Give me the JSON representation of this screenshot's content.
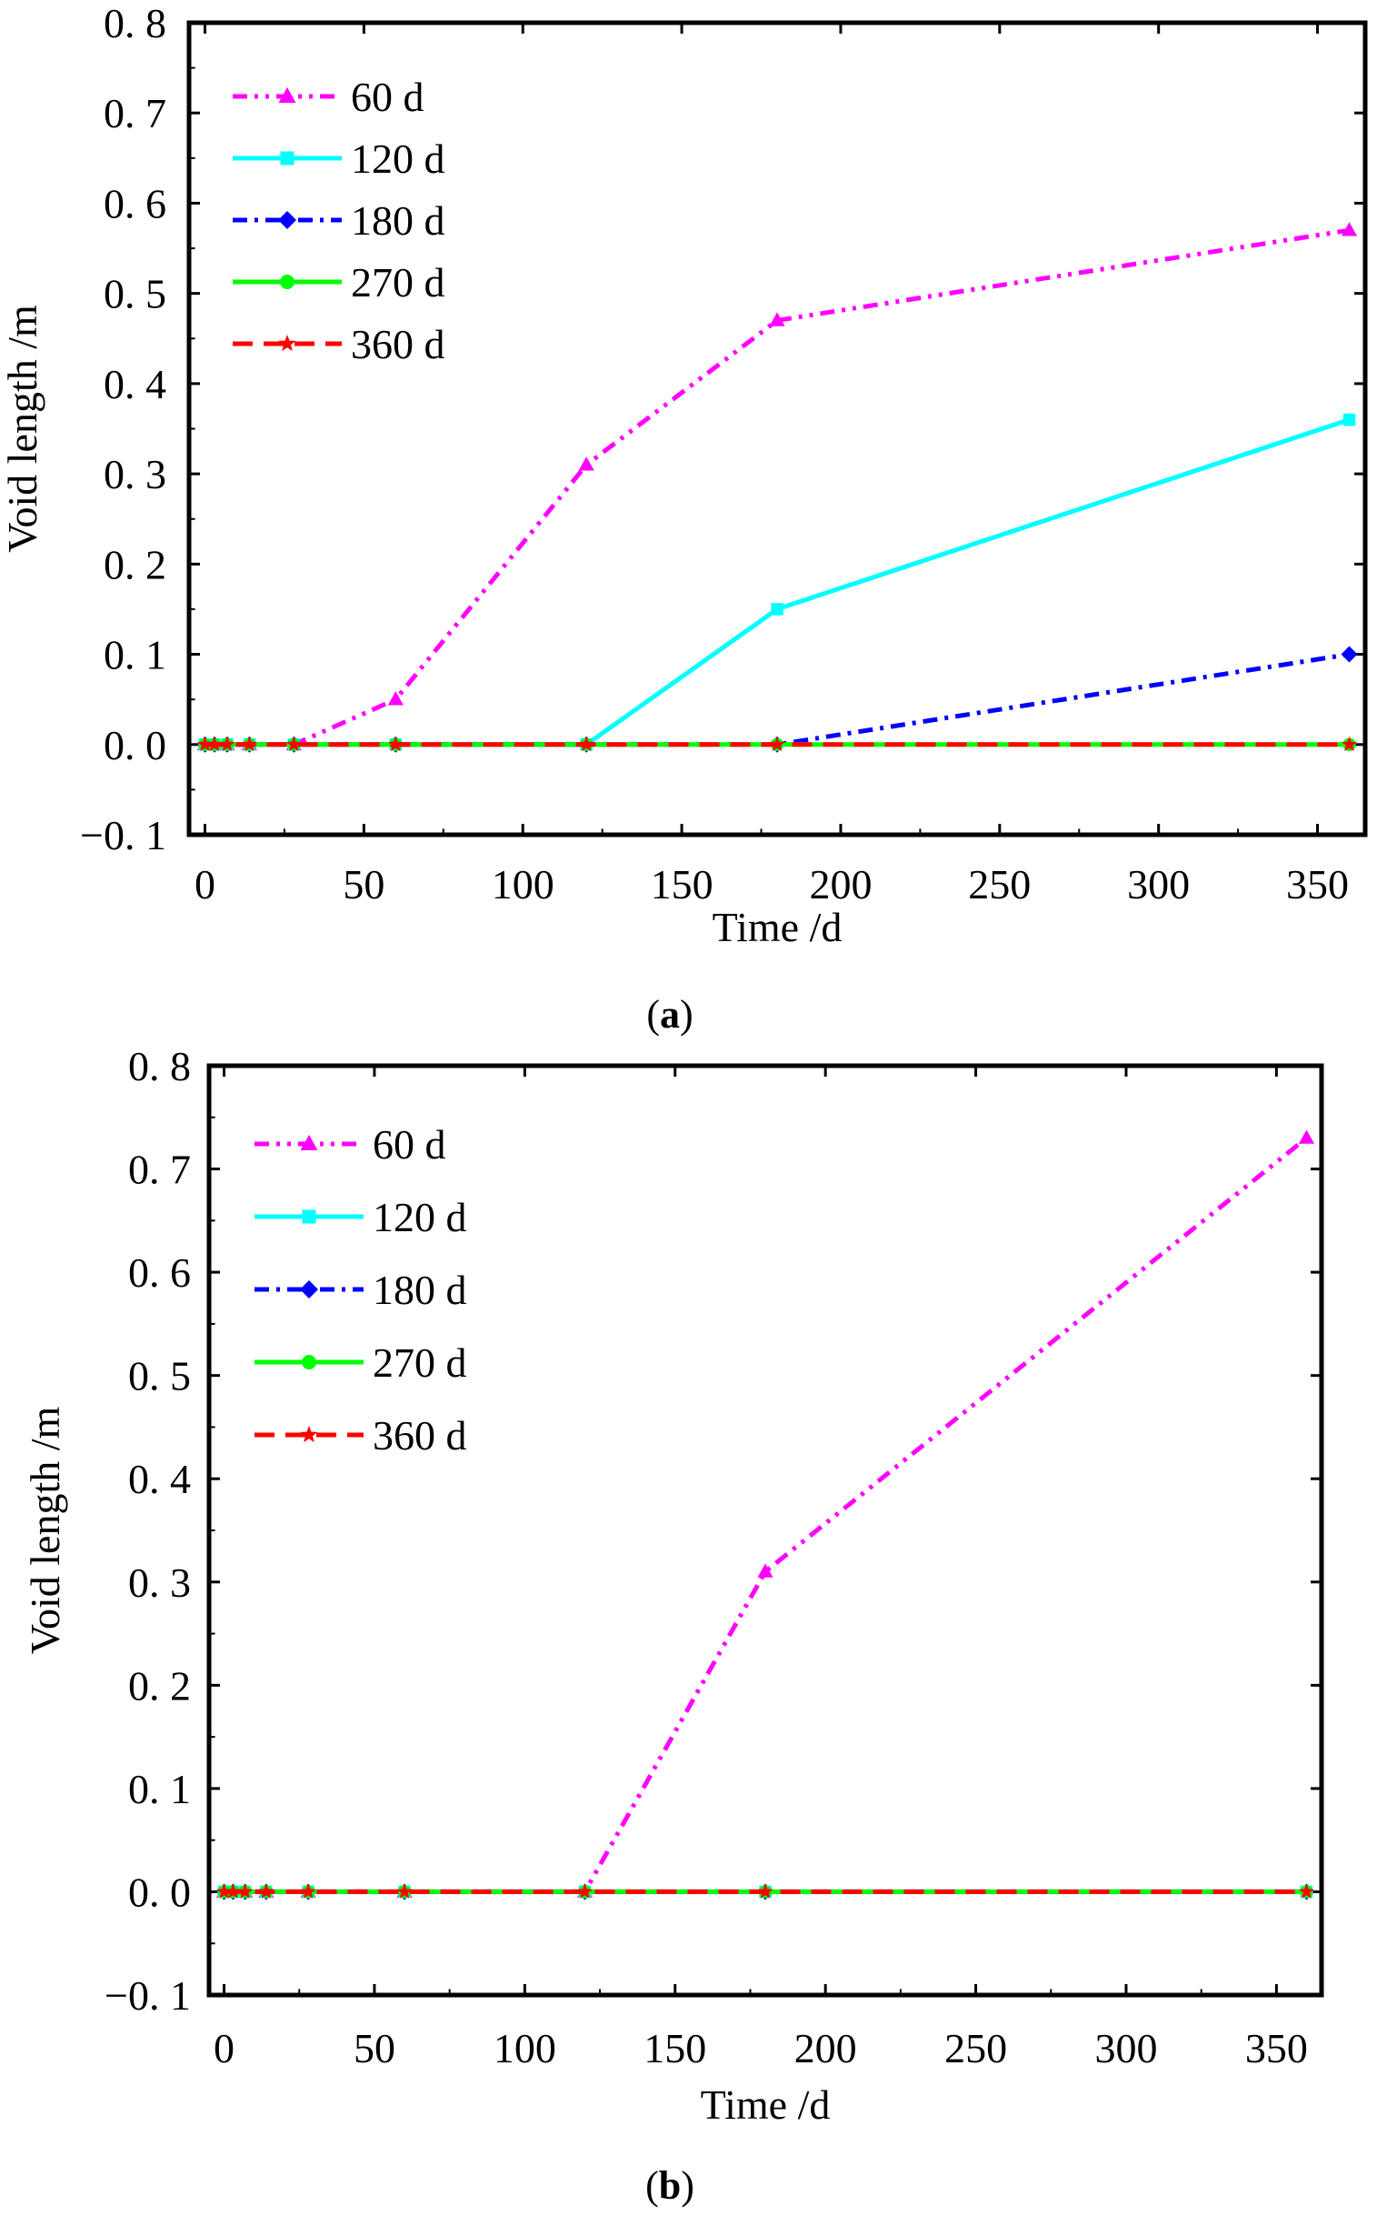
{
  "colors": {
    "s60": "#ff00ff",
    "s120": "#00ffff",
    "s180": "#0000ff",
    "s270": "#00ff00",
    "s360": "#ff0000"
  },
  "chart_data": [
    {
      "type": "line",
      "panel": "(a)",
      "panel_letter": "a",
      "xlabel": "Time /d",
      "ylabel": "Void length /m",
      "xlim": [
        -5,
        365
      ],
      "ylim": [
        -0.1,
        0.8
      ],
      "xticks": [
        0,
        50,
        100,
        150,
        200,
        250,
        300,
        350
      ],
      "yticks": [
        -0.1,
        0.0,
        0.1,
        0.2,
        0.3,
        0.4,
        0.5,
        0.6,
        0.7,
        0.8
      ],
      "ytick_labels": [
        "−0. 1",
        "0. 0",
        "0. 1",
        "0. 2",
        "0. 3",
        "0. 4",
        "0. 5",
        "0. 6",
        "0. 7",
        "0. 8"
      ],
      "legend_position": "top-left",
      "x": [
        0,
        3,
        7,
        14,
        28,
        60,
        120,
        180,
        360
      ],
      "series": [
        {
          "name": "60 d",
          "color_key": "s60",
          "marker": "triangle",
          "dash": "dash-dot-dot",
          "values": [
            0,
            0,
            0,
            0,
            0,
            0.05,
            0.31,
            0.47,
            0.57
          ]
        },
        {
          "name": "120 d",
          "color_key": "s120",
          "marker": "square",
          "dash": "solid",
          "values": [
            0,
            0,
            0,
            0,
            0,
            0,
            0,
            0.15,
            0.36
          ]
        },
        {
          "name": "180 d",
          "color_key": "s180",
          "marker": "diamond",
          "dash": "dash-dot",
          "values": [
            0,
            0,
            0,
            0,
            0,
            0,
            0,
            0,
            0.1
          ]
        },
        {
          "name": "270 d",
          "color_key": "s270",
          "marker": "circle",
          "dash": "solid",
          "values": [
            0,
            0,
            0,
            0,
            0,
            0,
            0,
            0,
            0
          ]
        },
        {
          "name": "360 d",
          "color_key": "s360",
          "marker": "star",
          "dash": "dash",
          "values": [
            0,
            0,
            0,
            0,
            0,
            0,
            0,
            0,
            0
          ]
        }
      ]
    },
    {
      "type": "line",
      "panel": "(b)",
      "panel_letter": "b",
      "xlabel": "Time /d",
      "ylabel": "Void length /m",
      "xlim": [
        -5,
        365
      ],
      "ylim": [
        -0.1,
        0.8
      ],
      "xticks": [
        0,
        50,
        100,
        150,
        200,
        250,
        300,
        350
      ],
      "yticks": [
        -0.1,
        0.0,
        0.1,
        0.2,
        0.3,
        0.4,
        0.5,
        0.6,
        0.7,
        0.8
      ],
      "ytick_labels": [
        "−0. 1",
        "0. 0",
        "0. 1",
        "0. 2",
        "0. 3",
        "0. 4",
        "0. 5",
        "0. 6",
        "0. 7",
        "0. 8"
      ],
      "legend_position": "top-left",
      "x": [
        0,
        3,
        7,
        14,
        28,
        60,
        120,
        180,
        360
      ],
      "series": [
        {
          "name": "60 d",
          "color_key": "s60",
          "marker": "triangle",
          "dash": "dash-dot-dot",
          "values": [
            0,
            0,
            0,
            0,
            0,
            0,
            0,
            0.31,
            0.73
          ]
        },
        {
          "name": "120 d",
          "color_key": "s120",
          "marker": "square",
          "dash": "solid",
          "values": [
            0,
            0,
            0,
            0,
            0,
            0,
            0,
            0,
            0
          ]
        },
        {
          "name": "180 d",
          "color_key": "s180",
          "marker": "diamond",
          "dash": "dash-dot",
          "values": [
            0,
            0,
            0,
            0,
            0,
            0,
            0,
            0,
            0
          ]
        },
        {
          "name": "270 d",
          "color_key": "s270",
          "marker": "circle",
          "dash": "solid",
          "values": [
            0,
            0,
            0,
            0,
            0,
            0,
            0,
            0,
            0
          ]
        },
        {
          "name": "360 d",
          "color_key": "s360",
          "marker": "star",
          "dash": "dash",
          "values": [
            0,
            0,
            0,
            0,
            0,
            0,
            0,
            0,
            0
          ]
        }
      ]
    }
  ]
}
